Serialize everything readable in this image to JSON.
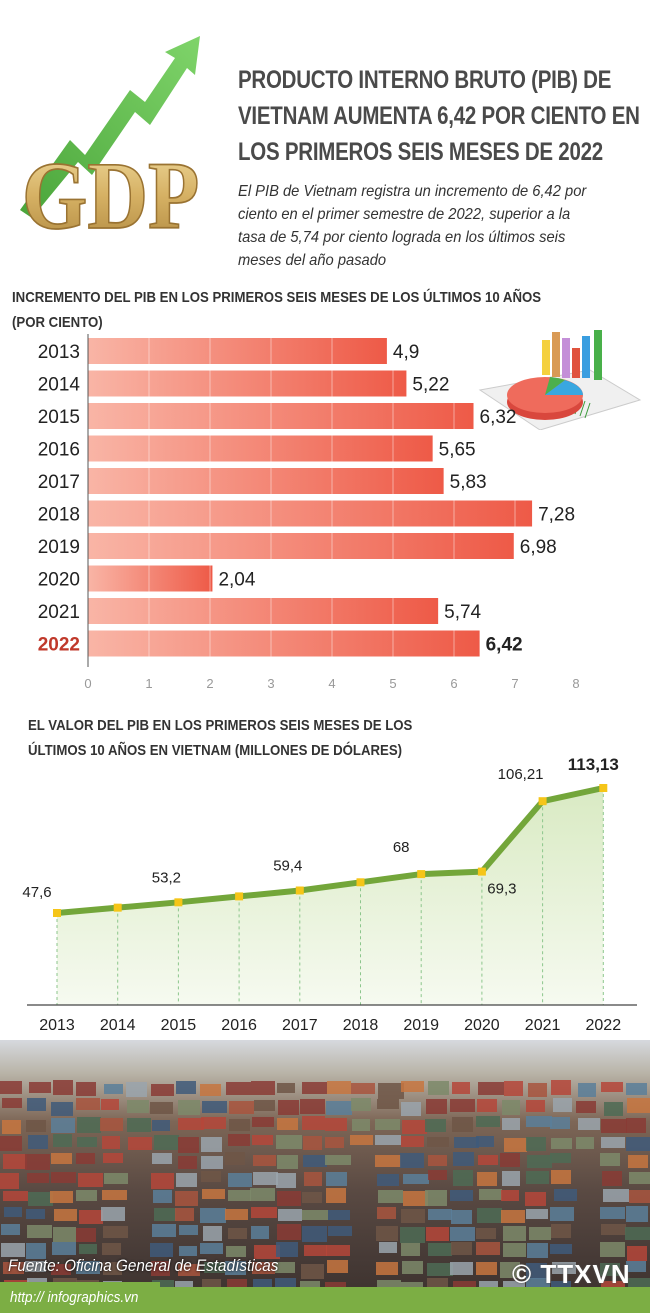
{
  "header": {
    "title_lines": [
      "PRODUCTO INTERNO BRUTO (PIB) DE",
      "VIETNAM AUMENTA 6,42 POR CIENTO EN",
      "LOS PRIMEROS SEIS MESES DE 2022"
    ],
    "subtitle_lines": [
      "El PIB de Vietnam registra un incremento de 6,42 por",
      "ciento en el primer semestre de 2022, superior a la",
      "tasa de 5,74 por ciento lograda en los últimos seis",
      "meses del año pasado"
    ],
    "logo_text": "GDP"
  },
  "colors": {
    "bar_light": "#f9b5a6",
    "bar_dark": "#ee5a47",
    "highlight_year": "#c0392b",
    "line": "#73a63a",
    "area": "#e6f0d6",
    "marker": "#f5c518",
    "footer": "#7cae44"
  },
  "chart_data": [
    {
      "type": "bar",
      "orientation": "horizontal",
      "title": "INCREMENTO DEL PIB EN LOS PRIMEROS SEIS MESES DE LOS ÚLTIMOS 10 AÑOS",
      "title_line2": "(POR CIENTO)",
      "categories": [
        "2013",
        "2014",
        "2015",
        "2016",
        "2017",
        "2018",
        "2019",
        "2020",
        "2021",
        "2022"
      ],
      "values": [
        4.9,
        5.22,
        6.32,
        5.65,
        5.83,
        7.28,
        6.98,
        2.04,
        5.74,
        6.42
      ],
      "labels": [
        "4,9",
        "5,22",
        "6,32",
        "5,65",
        "5,83",
        "7,28",
        "6,98",
        "2,04",
        "5,74",
        "6,42"
      ],
      "highlight": "2022",
      "xlim": [
        0,
        8
      ],
      "xticks": [
        "0",
        "1",
        "2",
        "3",
        "4",
        "5",
        "6",
        "7",
        "8"
      ],
      "grid": true
    },
    {
      "type": "area",
      "title": "EL VALOR DEL PIB EN LOS PRIMEROS SEIS MESES DE LOS",
      "title_line2": "ÚLTIMOS 10 AÑOS EN VIETNAM (MILLONES DE DÓLARES)",
      "categories": [
        "2013",
        "2014",
        "2015",
        "2016",
        "2017",
        "2018",
        "2019",
        "2020",
        "2021",
        "2022"
      ],
      "values": [
        47.6,
        50.4,
        53.2,
        56.3,
        59.4,
        63.7,
        68,
        69.3,
        106.21,
        113.13
      ],
      "labels": [
        "47,6",
        "",
        "53,2",
        "",
        "59,4",
        "",
        "68",
        "69,3",
        "106,21",
        "113,13"
      ],
      "highlight": "2022",
      "ylim": [
        0,
        125
      ]
    }
  ],
  "footer": {
    "source": "Fuente: Oficina General de Estadísticas",
    "url": "http:// infographics.vn",
    "logo": "© TTXVN"
  }
}
